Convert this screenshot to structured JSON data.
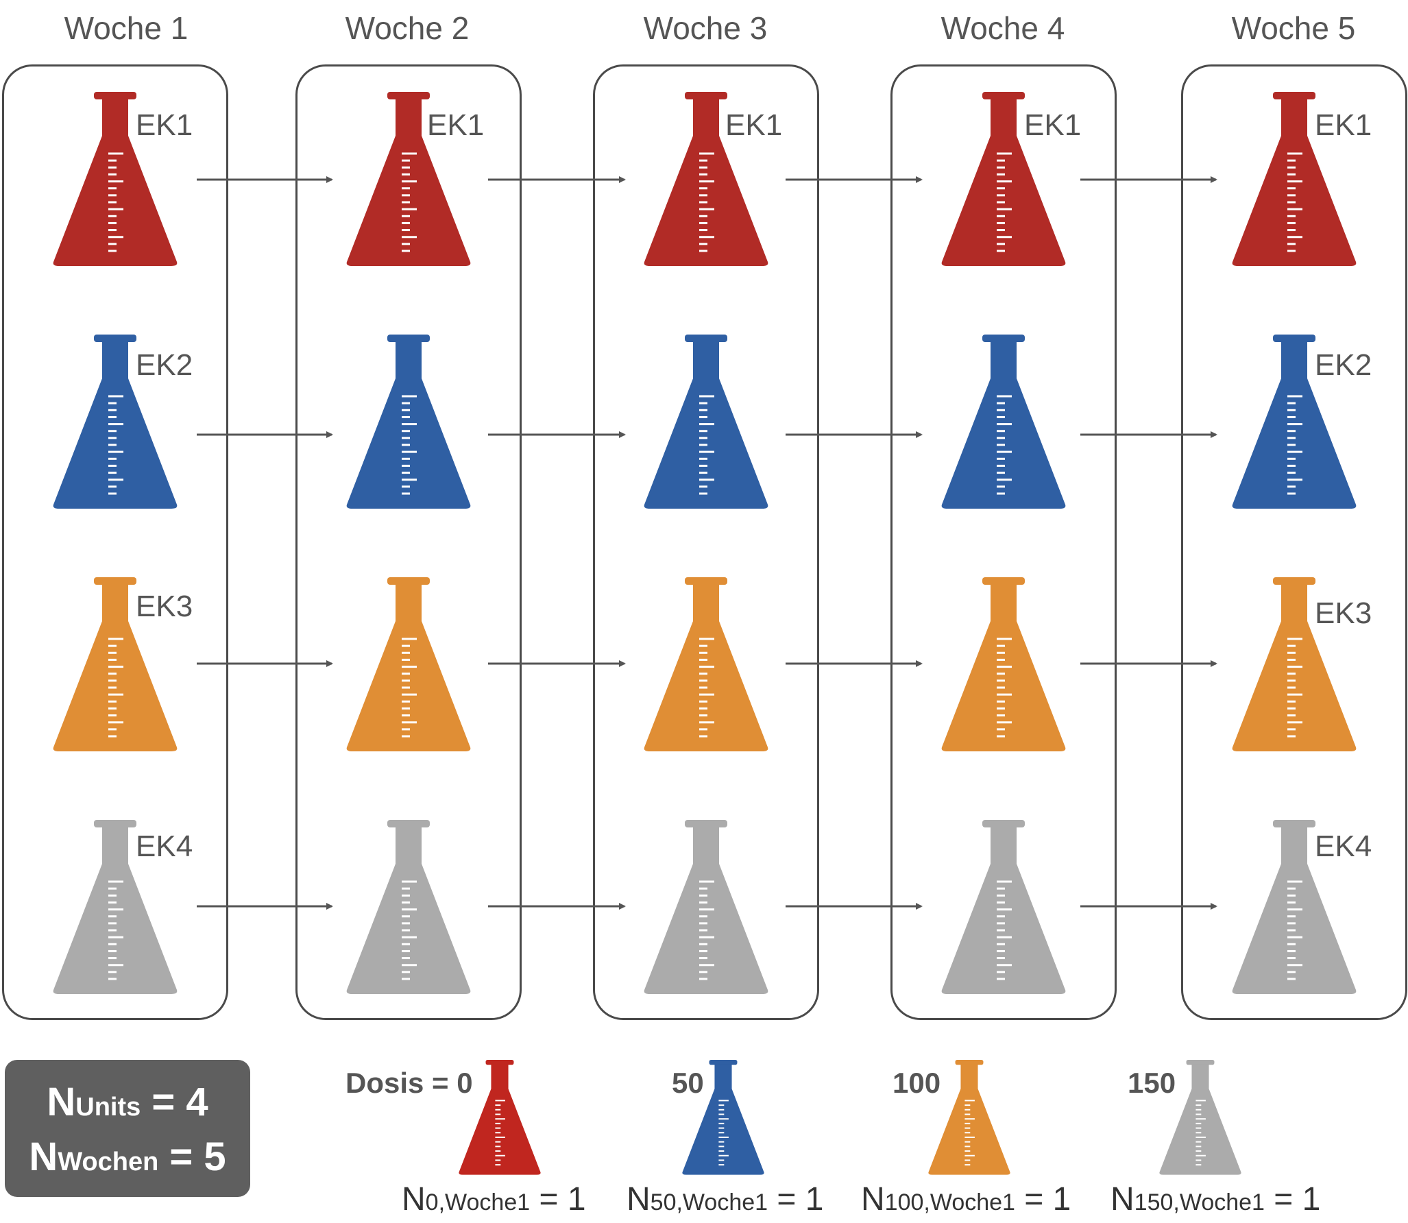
{
  "weeks": [
    "Woche 1",
    "Woche 2",
    "Woche 3",
    "Woche 4",
    "Woche 5"
  ],
  "units": [
    {
      "name": "EK1",
      "color": "#b12b26"
    },
    {
      "name": "EK2",
      "color": "#2f5fa3"
    },
    {
      "name": "EK3",
      "color": "#e08e35"
    },
    {
      "name": "EK4",
      "color": "#ababab"
    }
  ],
  "legend": [
    {
      "dose_label": "Dosis = 0",
      "count_prefix": "N",
      "count_sub": "0,Woche1",
      "count_suffix": " = 1",
      "color": "#c0261f"
    },
    {
      "dose_label": "50",
      "count_prefix": "N",
      "count_sub": "50,Woche1",
      "count_suffix": " = 1",
      "color": "#2f5fa3"
    },
    {
      "dose_label": "100",
      "count_prefix": "N",
      "count_sub": "100,Woche1",
      "count_suffix": " = 1",
      "color": "#e08e35"
    },
    {
      "dose_label": "150",
      "count_prefix": "N",
      "count_sub": "150,Woche1",
      "count_suffix": " = 1",
      "color": "#ababab"
    }
  ],
  "summary": {
    "units_prefix": "N",
    "units_sub": "Units",
    "units_value": " = 4",
    "weeks_prefix": "N",
    "weeks_sub": "Wochen",
    "weeks_value": " = 5"
  }
}
